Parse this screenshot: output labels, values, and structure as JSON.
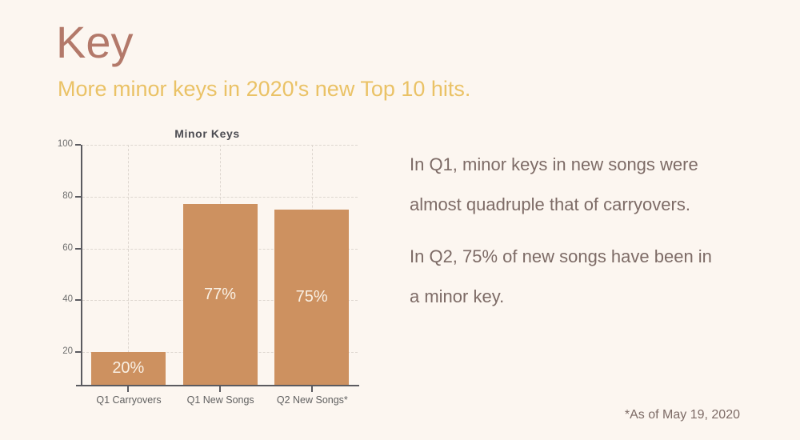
{
  "header": {
    "title": "Key",
    "subtitle": "More minor keys in 2020's new Top 10 hits."
  },
  "chart_data": {
    "type": "bar",
    "title": "Minor Keys",
    "categories": [
      "Q1 Carryovers",
      "Q1 New Songs",
      "Q2 New Songs*"
    ],
    "values": [
      20,
      77,
      75
    ],
    "value_labels": [
      "20%",
      "77%",
      "75%"
    ],
    "value_label_position": "center-of-bar",
    "xlabel": "",
    "ylabel": "",
    "ylim": [
      0,
      100
    ],
    "yticks": [
      20,
      40,
      60,
      80,
      100
    ],
    "grid": "dashed horizontal and vertical gridlines",
    "legend": "none"
  },
  "commentary": {
    "paragraphs": [
      {
        "lines": [
          "In Q1, minor keys in new songs were",
          "almost quadruple that of carryovers."
        ]
      },
      {
        "lines": [
          "In Q2, 75% of new songs have been in",
          "a minor key."
        ]
      }
    ]
  },
  "footer": {
    "footnote": "*As of May 19, 2020"
  },
  "colors": {
    "bg": "#fcf6f0",
    "title": "#b3796a",
    "subtitle": "#eac266",
    "bar": "#cd9160",
    "bar_label": "#f9f0e4",
    "chart_title": "#4c4c52",
    "axis": "#5b5b60",
    "grid": "#ded7d0",
    "tick_text": "#6e6e6e",
    "xtick_text": "#606060",
    "body_text": "#7d6b66"
  }
}
